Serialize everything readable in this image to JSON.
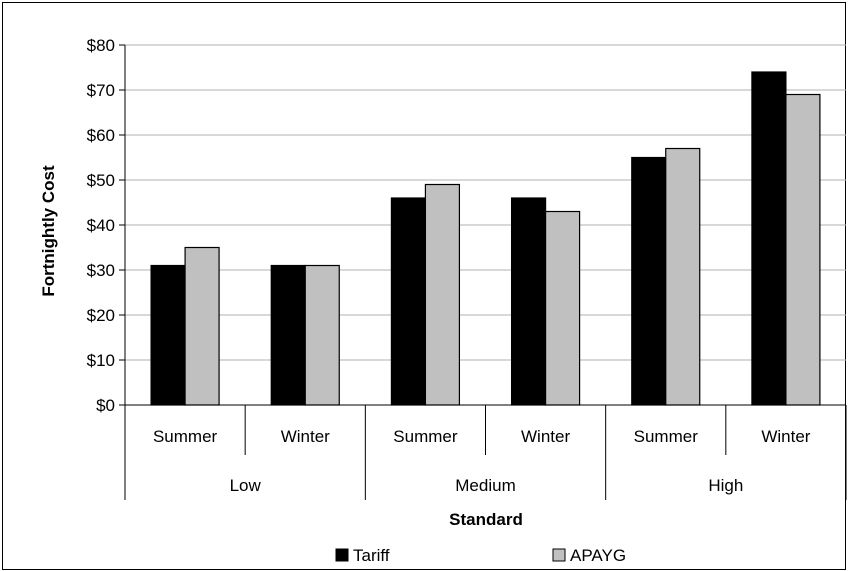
{
  "chart_data": {
    "type": "bar",
    "xlabel": "Standard",
    "ylabel": "Fortnightly Cost",
    "ylim": [
      0,
      80
    ],
    "yticks": [
      0,
      10,
      20,
      30,
      40,
      50,
      60,
      70,
      80
    ],
    "ytick_labels": [
      "$0",
      "$10",
      "$20",
      "$30",
      "$40",
      "$50",
      "$60",
      "$70",
      "$80"
    ],
    "grid": "horizontal",
    "legend_placement": "bottom",
    "groups": [
      "Low",
      "Medium",
      "High"
    ],
    "categories": [
      "Summer",
      "Winter",
      "Summer",
      "Winter",
      "Summer",
      "Winter"
    ],
    "series": [
      {
        "name": "Tariff",
        "color": "#000000",
        "values": [
          31,
          31,
          46,
          46,
          55,
          74
        ]
      },
      {
        "name": "APAYG",
        "color": "#c0c0c0",
        "values": [
          35,
          31,
          49,
          43,
          57,
          69
        ]
      }
    ]
  }
}
